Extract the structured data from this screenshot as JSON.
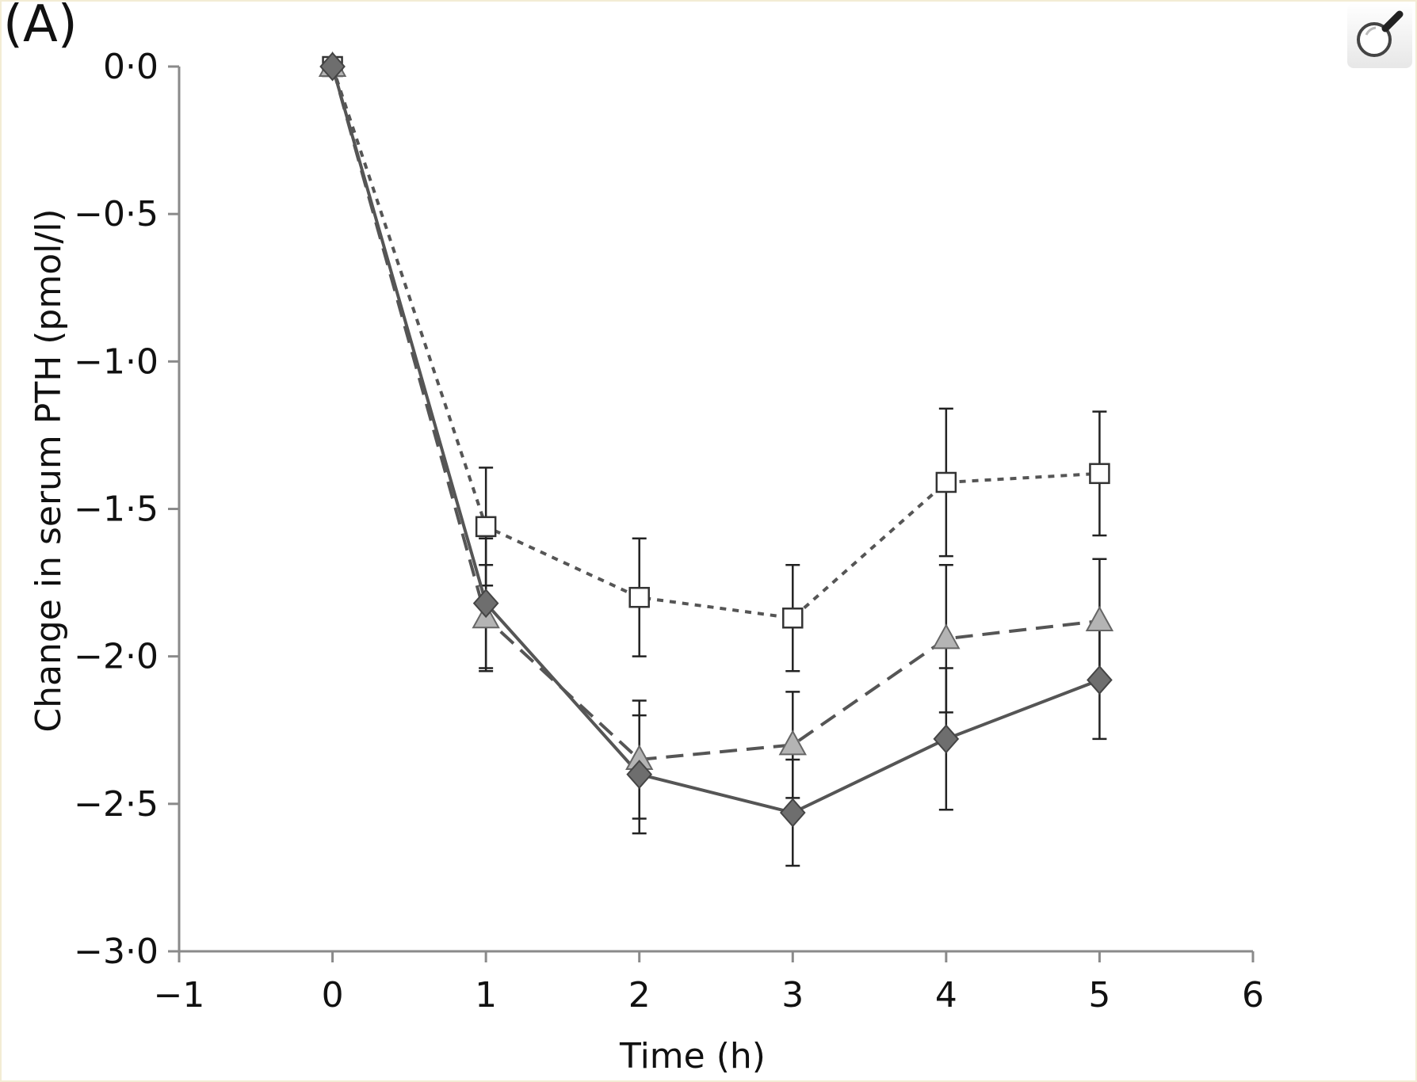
{
  "panel_label": "(A)",
  "toolbar": {
    "zoom_icon": "magnifier-icon"
  },
  "chart_data": {
    "type": "line",
    "xlabel": "Time (h)",
    "ylabel": "Change in serum PTH (pmol/l)",
    "xlim": [
      -1,
      6
    ],
    "ylim": [
      -3,
      0
    ],
    "xticks": [
      "−1",
      "0",
      "1",
      "2",
      "3",
      "4",
      "5",
      "6"
    ],
    "xtick_values": [
      -1,
      0,
      1,
      2,
      3,
      4,
      5,
      6
    ],
    "yticks": [
      "0·0",
      "−0·5",
      "−1·0",
      "−1·5",
      "−2·0",
      "−2·5",
      "−3·0"
    ],
    "ytick_values": [
      0,
      -0.5,
      -1.0,
      -1.5,
      -2.0,
      -2.5,
      -3.0
    ],
    "grid": false,
    "series": [
      {
        "marker": "square",
        "line_style": "dotted",
        "color": "#555555",
        "fill": "#ffffff",
        "x": [
          0,
          1,
          2,
          3,
          4,
          5
        ],
        "y": [
          0,
          -1.56,
          -1.8,
          -1.87,
          -1.41,
          -1.38
        ],
        "err": [
          0,
          0.2,
          0.2,
          0.18,
          0.25,
          0.21
        ]
      },
      {
        "marker": "triangle",
        "line_style": "dashed",
        "color": "#555555",
        "fill": "#b4b4b4",
        "x": [
          0,
          1,
          2,
          3,
          4,
          5
        ],
        "y": [
          0,
          -1.87,
          -2.35,
          -2.3,
          -1.94,
          -1.88
        ],
        "err": [
          0,
          0.18,
          0.2,
          0.18,
          0.25,
          0.21
        ]
      },
      {
        "marker": "diamond",
        "line_style": "solid",
        "color": "#555555",
        "fill": "#6e6e6e",
        "x": [
          0,
          1,
          2,
          3,
          4,
          5
        ],
        "y": [
          0,
          -1.82,
          -2.4,
          -2.53,
          -2.28,
          -2.08
        ],
        "err": [
          0,
          0.22,
          0.2,
          0.18,
          0.24,
          0.2
        ]
      }
    ]
  }
}
